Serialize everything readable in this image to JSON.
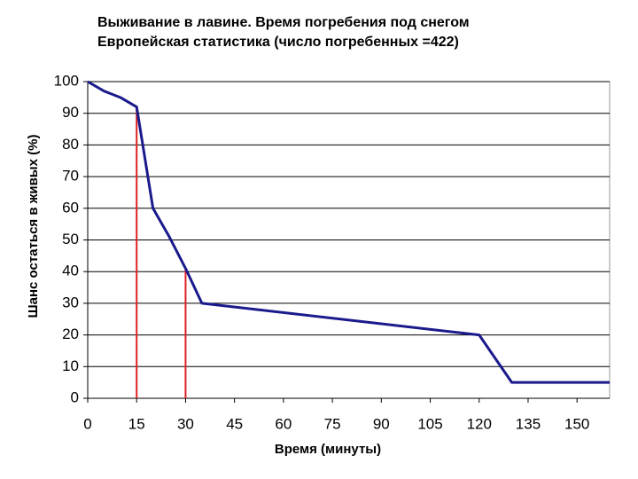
{
  "chart_data": {
    "type": "line",
    "title": [
      "Выживание в лавине. Время погребения под снегом",
      "Европейская статистика (число погребенных =422)"
    ],
    "xlabel": "Время (минуты)",
    "ylabel": "Шанс остаться в живых (%)",
    "x": [
      0,
      5,
      10,
      15,
      20,
      25,
      30,
      35,
      120,
      130,
      160
    ],
    "values": [
      100,
      97,
      95,
      92,
      60,
      51,
      41,
      30,
      20,
      5,
      5
    ],
    "color": "#1a1a8c",
    "vlines": [
      {
        "x": 15,
        "y": 92
      },
      {
        "x": 30,
        "y": 41
      }
    ],
    "vline_color": "#e02020",
    "xlim": [
      0,
      160
    ],
    "xticks": [
      0,
      15,
      30,
      45,
      60,
      75,
      90,
      105,
      120,
      135,
      150
    ],
    "ylim": [
      0,
      100
    ],
    "yticks": [
      0,
      10,
      20,
      30,
      40,
      50,
      60,
      70,
      80,
      90,
      100
    ],
    "grid": true
  }
}
